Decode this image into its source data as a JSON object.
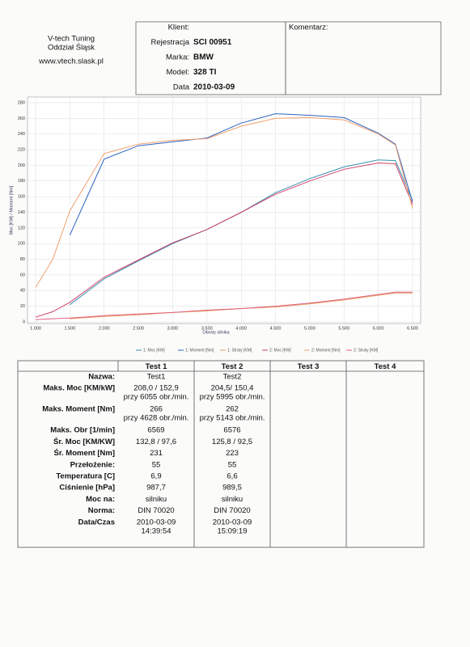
{
  "header": {
    "company": "V-tech Tuning",
    "branch": "Oddział Śląsk",
    "website": "www.vtech.slask.pl",
    "fields": [
      {
        "label": "Klient:",
        "value": null
      },
      {
        "label": "Rejestracja",
        "value": "SCI 00951"
      },
      {
        "label": "Marka:",
        "value": "BMW"
      },
      {
        "label": "Model:",
        "value": "328 TI"
      },
      {
        "label": "Data",
        "value": "2010-03-09"
      }
    ],
    "comment_label": "Komentarz:"
  },
  "chart_data": {
    "type": "line",
    "xlabel": "Obroty silnika",
    "ylabel": "Moc [KM] / Moment [Nm]",
    "x": [
      1000,
      1250,
      1500,
      2000,
      2500,
      3000,
      3500,
      4000,
      4500,
      5000,
      5500,
      6000,
      6250,
      6500
    ],
    "xlim": [
      1000,
      6500
    ],
    "xticks": [
      {
        "value": 1000,
        "label": "1.000"
      },
      {
        "value": 1500,
        "label": "1.500"
      },
      {
        "value": 2000,
        "label": "2.000"
      },
      {
        "value": 2500,
        "label": "2.500"
      },
      {
        "value": 3000,
        "label": "3.000"
      },
      {
        "value": 3500,
        "label": "3.500"
      },
      {
        "value": 4000,
        "label": "4.000"
      },
      {
        "value": 4500,
        "label": "4.500"
      },
      {
        "value": 5000,
        "label": "5.000"
      },
      {
        "value": 5500,
        "label": "5.500"
      },
      {
        "value": 6000,
        "label": "6.000"
      },
      {
        "value": 6500,
        "label": "6.500"
      }
    ],
    "ylim": [
      0,
      280
    ],
    "yticks": [
      0,
      20,
      40,
      60,
      80,
      100,
      120,
      140,
      160,
      180,
      200,
      220,
      240,
      260,
      280
    ],
    "grid": true,
    "series": [
      {
        "name": "1: Moc [KM]",
        "color": "#3a8fb0",
        "values": [
          null,
          null,
          22,
          55,
          78,
          100,
          118,
          140,
          165,
          183,
          198,
          207,
          206,
          155
        ]
      },
      {
        "name": "1: Moment [Nm]",
        "color": "#2a62c0",
        "values": [
          null,
          null,
          111,
          208,
          225,
          230,
          235,
          254,
          266,
          264,
          261,
          241,
          227,
          153
        ]
      },
      {
        "name": "1: Straty [KM]",
        "color": "#e8a060",
        "values": [
          null,
          null,
          4,
          7,
          9,
          12,
          14,
          17,
          19,
          23,
          28,
          34,
          37,
          37
        ]
      },
      {
        "name": "2: Moc [KM]",
        "color": "#d0406a",
        "values": [
          6,
          13,
          25,
          57,
          79,
          101,
          118,
          140,
          163,
          180,
          195,
          203,
          202,
          150
        ]
      },
      {
        "name": "2: Moment [Nm]",
        "color": "#f0a070",
        "values": [
          44,
          80,
          142,
          215,
          227,
          232,
          234,
          250,
          260,
          261,
          258,
          240,
          226,
          145
        ]
      },
      {
        "name": "2: Straty [KM]",
        "color": "#e06080",
        "values": [
          3,
          4,
          5,
          8,
          10,
          12,
          15,
          17,
          20,
          24,
          29,
          35,
          38,
          38
        ]
      }
    ]
  },
  "table": {
    "columns": [
      "Test 1",
      "Test 2",
      "Test 3",
      "Test 4"
    ],
    "rows": [
      {
        "label": "Nazwa:",
        "cells": [
          [
            "Test1"
          ],
          [
            "Test2"
          ]
        ]
      },
      {
        "label": "Maks. Moc [KM/kW]",
        "cells": [
          [
            "208,0 / 152,9",
            "przy 6055 obr./min."
          ],
          [
            "204,5/ 150,4",
            "przy 5995 obr./min."
          ]
        ]
      },
      {
        "label": "Maks. Moment [Nm]",
        "cells": [
          [
            "266",
            "przy 4628 obr./min."
          ],
          [
            "262",
            "przy 5143 obr./min."
          ]
        ]
      },
      {
        "label": "Maks. Obr [1/min]",
        "cells": [
          [
            "6569"
          ],
          [
            "6576"
          ]
        ]
      },
      {
        "label": "Śr. Moc [KM/KW]",
        "cells": [
          [
            "132,8 / 97,6"
          ],
          [
            "125,8 / 92,5"
          ]
        ]
      },
      {
        "label": "Śr. Moment [Nm]",
        "cells": [
          [
            "231"
          ],
          [
            "223"
          ]
        ]
      },
      {
        "label": "Przełożenie:",
        "cells": [
          [
            "55"
          ],
          [
            "55"
          ]
        ]
      },
      {
        "label": "Temperatura [C]",
        "cells": [
          [
            "6,9"
          ],
          [
            "6,6"
          ]
        ]
      },
      {
        "label": "Ciśnienie [hPa]",
        "cells": [
          [
            "987,7"
          ],
          [
            "989,5"
          ]
        ]
      },
      {
        "label": "Moc na:",
        "cells": [
          [
            "silniku"
          ],
          [
            "silniku"
          ]
        ]
      },
      {
        "label": "Norma:",
        "cells": [
          [
            "DIN 70020"
          ],
          [
            "DIN 70020"
          ]
        ]
      },
      {
        "label": "Data/Czas",
        "cells": [
          [
            "2010-03-09",
            "14:39:54"
          ],
          [
            "2010-03-09",
            "15:09:19"
          ]
        ]
      }
    ]
  }
}
